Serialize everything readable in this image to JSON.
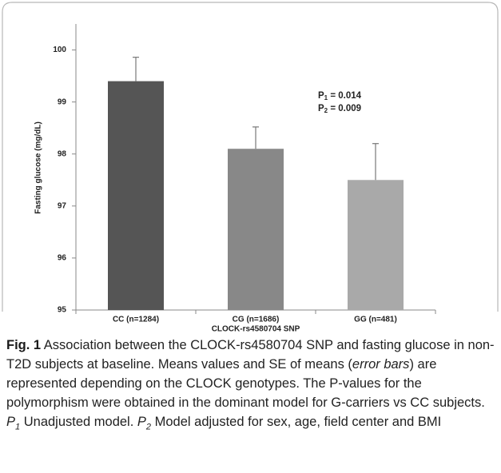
{
  "chart_data": {
    "type": "bar",
    "y_label": "Fasting glucose (mg/dL)",
    "x_label": "CLOCK-rs4580704 SNP",
    "categories": [
      "CC (n=1284)",
      "CG (n=1686)",
      "GG (n=481)"
    ],
    "values": [
      99.4,
      98.1,
      97.5
    ],
    "errors": [
      0.46,
      0.42,
      0.7
    ],
    "colors": [
      "#555555",
      "#888888",
      "#a9a9a9"
    ],
    "ylim": [
      95,
      100.5
    ],
    "yticks": [
      95,
      96,
      97,
      98,
      99,
      100
    ],
    "annotations": [
      {
        "label": "P",
        "subscript": "1",
        "text": " = 0.014"
      },
      {
        "label": "P",
        "subscript": "2",
        "text": " = 0.009"
      }
    ]
  },
  "caption": {
    "label": "Fig. 1",
    "parts": [
      {
        "text": " Association between the CLOCK-rs4580704 SNP and fasting glucose in non-T2D subjects at baseline. Means values and SE of means ("
      },
      {
        "text": "error bars",
        "italic": true
      },
      {
        "text": ") are represented depending on the CLOCK genotypes. The P-values for the polymorphism were obtained in the dominant model for G-carriers vs CC subjects. "
      },
      {
        "text": "P",
        "italic": true
      },
      {
        "text": "1",
        "italic": true,
        "sub": true
      },
      {
        "text": " Unadjusted model. "
      },
      {
        "text": "P",
        "italic": true
      },
      {
        "text": "2",
        "italic": true,
        "sub": true
      },
      {
        "text": " Model adjusted for sex, age, field center and BMI"
      }
    ]
  }
}
